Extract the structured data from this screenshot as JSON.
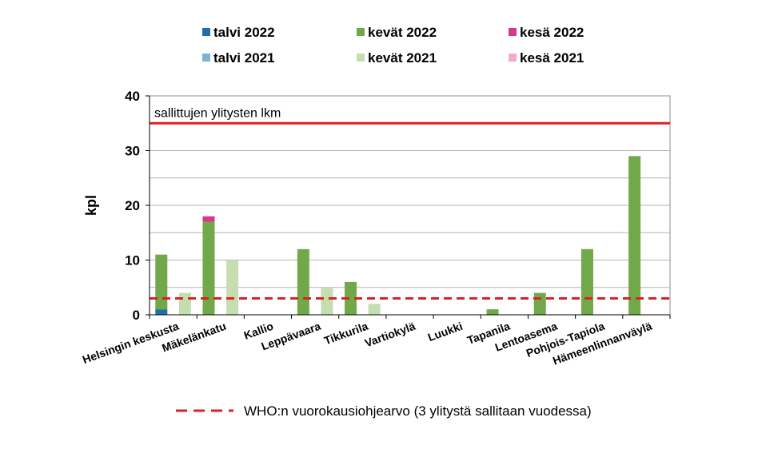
{
  "chart_data": {
    "type": "bar",
    "ylabel": "kpl",
    "ylim": [
      0,
      40
    ],
    "yticks": [
      "0",
      "10",
      "20",
      "30",
      "40"
    ],
    "grid": true,
    "categories": [
      "Helsingin keskusta",
      "Mäkelänkatu",
      "Kallio",
      "Leppävaara",
      "Tikkurila",
      "Vartiokylä",
      "Luukki",
      "Tapanila",
      "Lentoasema",
      "Pohjois-Tapiola",
      "Hämeenlinnanväylä"
    ],
    "series": [
      {
        "name": "talvi 2022",
        "group": "2022",
        "color": "#1f6fa8",
        "values": [
          1,
          0,
          0,
          0,
          0,
          0,
          0,
          0,
          0,
          0,
          0
        ]
      },
      {
        "name": "kevät 2022",
        "group": "2022",
        "color": "#70a84a",
        "values": [
          10,
          17,
          0,
          12,
          6,
          0,
          0,
          1,
          4,
          12,
          29
        ]
      },
      {
        "name": "kesä 2022",
        "group": "2022",
        "color": "#d6388f",
        "values": [
          0,
          1,
          0,
          0,
          0,
          0,
          0,
          0,
          0,
          0,
          0
        ]
      },
      {
        "name": "talvi 2021",
        "group": "2021",
        "color": "#7ab3d6",
        "values": [
          0,
          0,
          0,
          0,
          0,
          0,
          0,
          0,
          0,
          0,
          0
        ]
      },
      {
        "name": "kevät 2021",
        "group": "2021",
        "color": "#c5deb0",
        "values": [
          4,
          10,
          0,
          5,
          2,
          0,
          0,
          0,
          0,
          0,
          0
        ]
      },
      {
        "name": "kesä 2021",
        "group": "2021",
        "color": "#f2aacd",
        "values": [
          0,
          0,
          0,
          0,
          0,
          0,
          0,
          0,
          0,
          0,
          0
        ]
      }
    ],
    "reference_lines": [
      {
        "label": "sallittujen ylitysten lkm",
        "value": 35,
        "style": "solid",
        "color": "#e02020"
      },
      {
        "label": "WHO:n vuorokausiohjearvo (3 ylitystä sallitaan vuodessa)",
        "value": 3,
        "style": "dashed",
        "color": "#e02020"
      }
    ],
    "legend_position": "top"
  }
}
